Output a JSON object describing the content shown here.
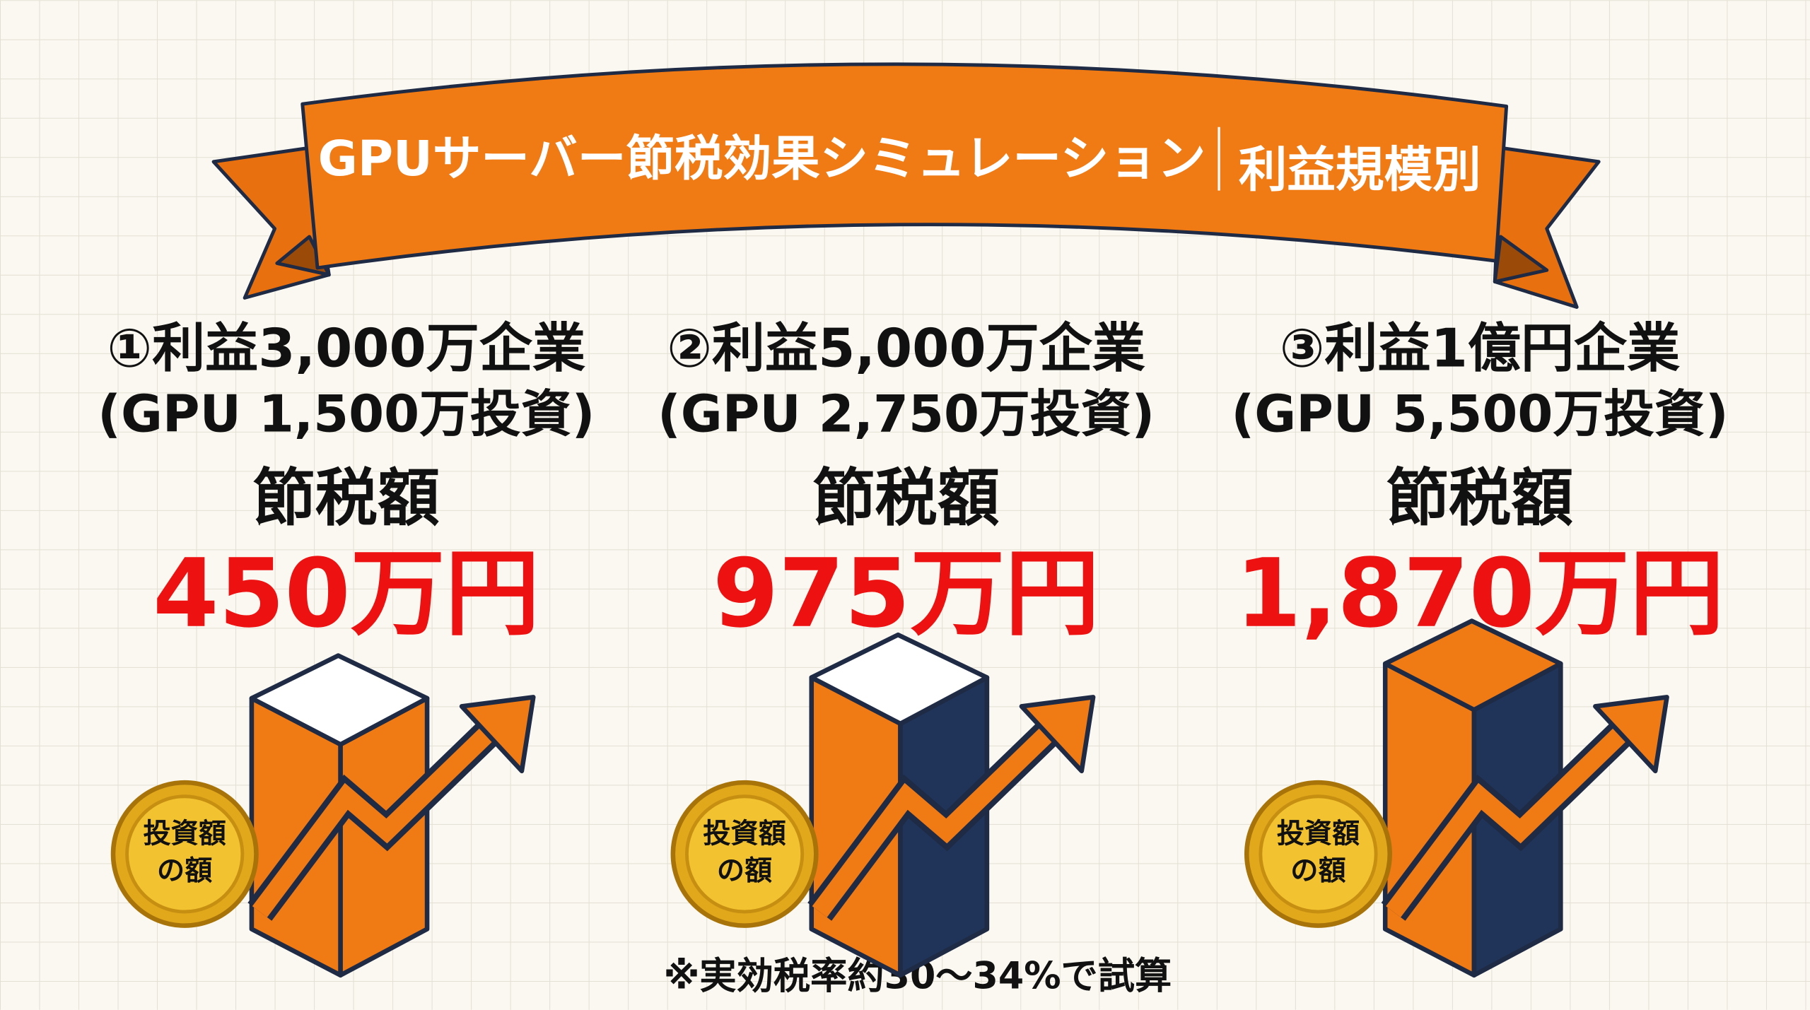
{
  "banner": {
    "title": "GPUサーバー節税効果シミュレーション",
    "subtitle": "利益規模別"
  },
  "columns": [
    {
      "heading": "①利益3,000万企業",
      "investment": "(GPU 1,500万投資)",
      "label": "節税額",
      "amount": "450万円",
      "coin": [
        "投資額",
        "の額"
      ]
    },
    {
      "heading": "②利益5,000万企業",
      "investment": "(GPU 2,750万投資)",
      "label": "節税額",
      "amount": "975万円",
      "coin": [
        "投資額",
        "の額"
      ]
    },
    {
      "heading": "③利益1億円企業",
      "investment": "(GPU 5,500万投資)",
      "label": "節税額",
      "amount": "1,870万円",
      "coin": [
        "投資額",
        "の額"
      ]
    }
  ],
  "footnote": "※実効税率約30〜34%で試算"
}
